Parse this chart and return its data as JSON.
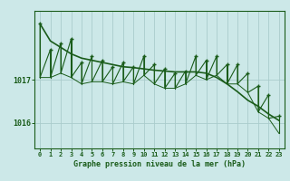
{
  "title": "Graphe pression niveau de la mer (hPa)",
  "background_color": "#cce8e8",
  "grid_color": "#aacccc",
  "line_color": "#1a5c1a",
  "x_labels": [
    "0",
    "1",
    "2",
    "3",
    "4",
    "5",
    "6",
    "7",
    "8",
    "9",
    "10",
    "11",
    "12",
    "13",
    "14",
    "15",
    "16",
    "17",
    "18",
    "19",
    "20",
    "21",
    "22",
    "23"
  ],
  "y_ticks": [
    1016,
    1017
  ],
  "ylim": [
    1015.4,
    1018.6
  ],
  "xlim": [
    -0.5,
    23.5
  ],
  "peak_values": [
    1018.3,
    1017.7,
    1017.85,
    1017.95,
    1017.4,
    1017.55,
    1017.45,
    1017.3,
    1017.4,
    1017.3,
    1017.55,
    1017.35,
    1017.25,
    1017.15,
    1017.2,
    1017.55,
    1017.45,
    1017.55,
    1017.35,
    1017.35,
    1017.15,
    1016.85,
    1016.65,
    1016.15
  ],
  "trough_values": [
    1017.05,
    1017.05,
    1017.15,
    1017.05,
    1016.9,
    1016.95,
    1016.95,
    1016.9,
    1016.95,
    1016.9,
    1017.1,
    1016.9,
    1016.8,
    1016.8,
    1016.9,
    1017.1,
    1017.0,
    1017.1,
    1016.9,
    1016.9,
    1016.7,
    1016.25,
    1016.1,
    1015.75
  ],
  "smooth_values": [
    1018.3,
    1017.9,
    1017.75,
    1017.6,
    1017.5,
    1017.45,
    1017.4,
    1017.35,
    1017.3,
    1017.28,
    1017.25,
    1017.22,
    1017.2,
    1017.18,
    1017.18,
    1017.18,
    1017.15,
    1017.05,
    1016.9,
    1016.72,
    1016.52,
    1016.38,
    1016.2,
    1016.05
  ],
  "figsize": [
    3.2,
    2.0
  ],
  "dpi": 100
}
